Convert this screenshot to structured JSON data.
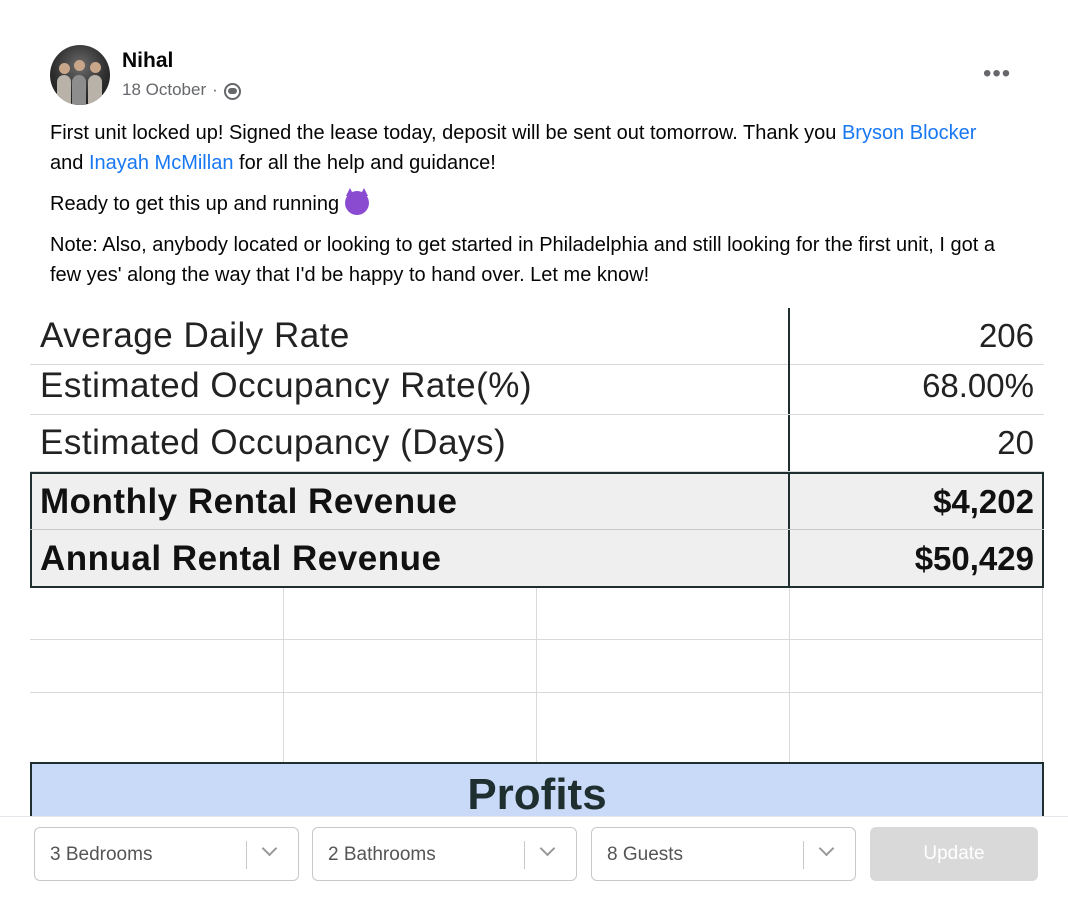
{
  "post": {
    "author": "Nihal",
    "date": "18 October",
    "meta_separator": "·",
    "audience_icon": "friends-icon",
    "more_label": "•••",
    "paragraph1": {
      "text_a": "First unit locked up! Signed the lease today, deposit will be sent out tomorrow. Thank you ",
      "mention1": "Bryson Blocker",
      "text_b": " and ",
      "mention2": "Inayah McMillan",
      "text_c": " for all the help and guidance!"
    },
    "paragraph2": "Ready to get this up and running",
    "paragraph2_emoji": "smiling-devil-emoji",
    "paragraph3": "Note: Also, anybody located or looking to get started in Philadelphia and still looking for the first unit, I got a few yes' along the way that I'd be happy to hand over. Let me know!"
  },
  "sheet": {
    "rows": [
      {
        "label": "Average Daily Rate",
        "value": "206"
      },
      {
        "label": "Estimated Occupancy Rate(%)",
        "value": "68.00%"
      },
      {
        "label": "Estimated Occupancy (Days)",
        "value": "20"
      },
      {
        "label": "Monthly Rental Revenue",
        "value": "$4,202"
      },
      {
        "label": "Annual Rental Revenue",
        "value": "$50,429"
      }
    ],
    "profits_header": "Profits",
    "header_color": "#c9daf8"
  },
  "controls": {
    "bedrooms": "3 Bedrooms",
    "bathrooms": "2 Bathrooms",
    "guests": "8 Guests",
    "update_label": "Update"
  },
  "colors": {
    "link": "#1877f2",
    "muted": "#65676b"
  }
}
